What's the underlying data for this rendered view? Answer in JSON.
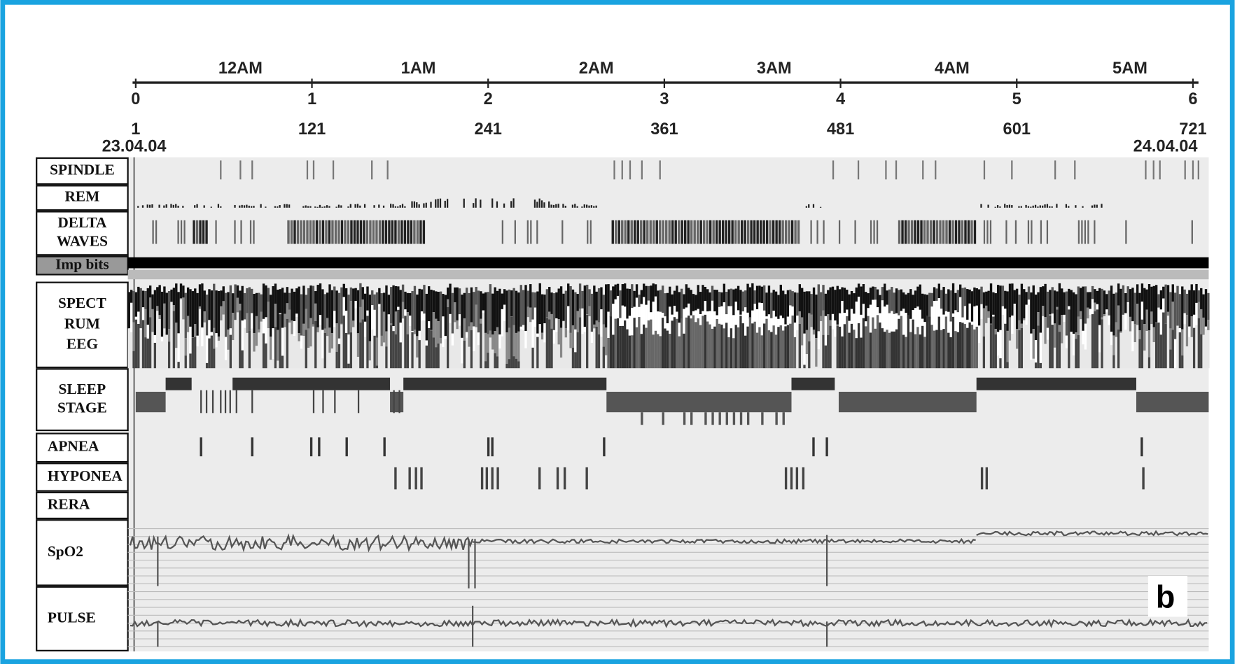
{
  "axis": {
    "clock": [
      "12AM",
      "1AM",
      "2AM",
      "3AM",
      "4AM",
      "5AM"
    ],
    "hours": [
      "0",
      "1",
      "2",
      "3",
      "4",
      "5",
      "6"
    ],
    "epochs": [
      "1",
      "121",
      "241",
      "361",
      "481",
      "601",
      "721"
    ],
    "start_date": "23.04.04",
    "end_date": "24.04.04"
  },
  "rows": [
    {
      "lines": [
        "SPINDLE"
      ]
    },
    {
      "lines": [
        "REM"
      ]
    },
    {
      "lines": [
        "DELTA",
        "WAVES"
      ]
    },
    {
      "lines": [
        "Imp bits"
      ]
    },
    {
      "lines": [
        "SPECT",
        "RUM",
        "EEG"
      ]
    },
    {
      "lines": [
        "SLEEP",
        "STAGE"
      ]
    },
    {
      "lines": [
        "APNEA"
      ]
    },
    {
      "lines": [
        "HYPONEA"
      ]
    },
    {
      "lines": [
        "RERA"
      ]
    },
    {
      "lines": [
        "SpO2"
      ]
    },
    {
      "lines": [
        "PULSE"
      ]
    }
  ],
  "panel_letter": "b"
}
